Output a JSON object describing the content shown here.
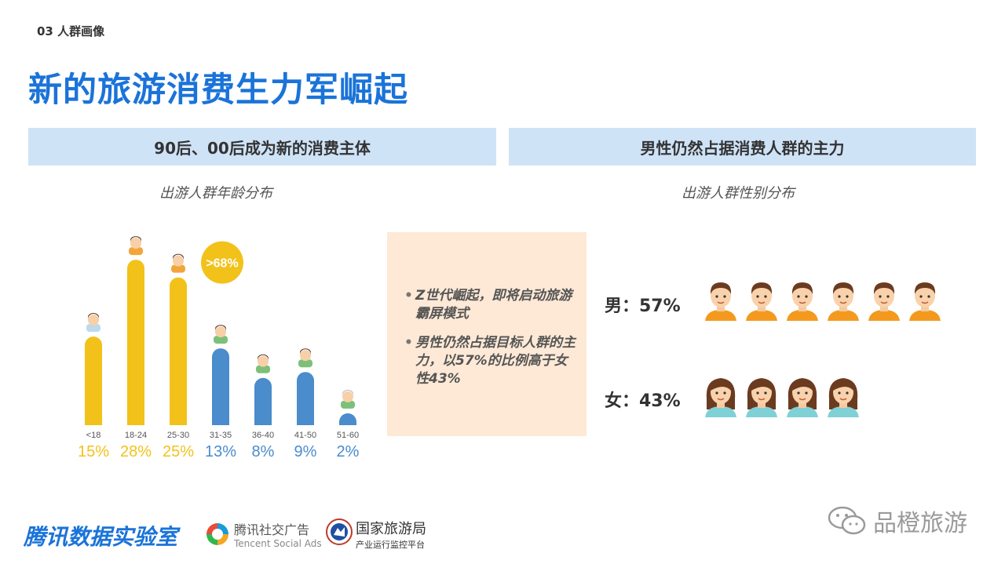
{
  "section_label": "03 人群画像",
  "title": "新的旅游消费生力军崛起",
  "left_panel": {
    "header": "90后、00后成为新的消费主体",
    "chart_title": "出游人群年龄分布"
  },
  "right_panel": {
    "header": "男性仍然占据消费人群的主力",
    "chart_title": "出游人群性别分布"
  },
  "chart_data": [
    {
      "type": "bar",
      "title": "出游人群年龄分布",
      "categories": [
        "<18",
        "18-24",
        "25-30",
        "31-35",
        "36-40",
        "41-50",
        "51-60"
      ],
      "values": [
        15,
        28,
        25,
        13,
        8,
        9,
        2
      ],
      "value_labels": [
        "15%",
        "28%",
        "25%",
        "13%",
        "8%",
        "9%",
        "2%"
      ],
      "unit": "%",
      "bar_colors": [
        "#f2c21b",
        "#f2c21b",
        "#f2c21b",
        "#4a8ccc",
        "#4a8ccc",
        "#4a8ccc",
        "#4a8ccc"
      ],
      "badge": ">68%",
      "badge_color": "#f2c21b",
      "ylim": [
        0,
        30
      ]
    },
    {
      "type": "pictogram",
      "title": "出游人群性别分布",
      "categories": [
        "男",
        "女"
      ],
      "values": [
        57,
        43
      ],
      "labels": [
        "男：57%",
        "女：43%"
      ],
      "icon_counts": [
        6,
        4
      ]
    }
  ],
  "callout": {
    "items": [
      "Z世代崛起，即将启动旅游霸屏模式",
      "男性仍然占据目标人群的主力，以57%的比例高于女性43%"
    ]
  },
  "footer": {
    "brand": "腾讯数据实验室",
    "tencent_cn": "腾讯社交广告",
    "tencent_en": "Tencent Social Ads",
    "cnta_cn": "国家旅游局",
    "cnta_sub": "产业运行监控平台",
    "watermark": "品橙旅游"
  },
  "colors": {
    "title_blue": "#1a73d9",
    "header_bg": "#cfe3f7",
    "yellow": "#f2c21b",
    "blue": "#4a8ccc",
    "callout_bg": "#fde9d6",
    "male_shirt": "#f39a1e",
    "female_shirt": "#7fd1d6"
  }
}
